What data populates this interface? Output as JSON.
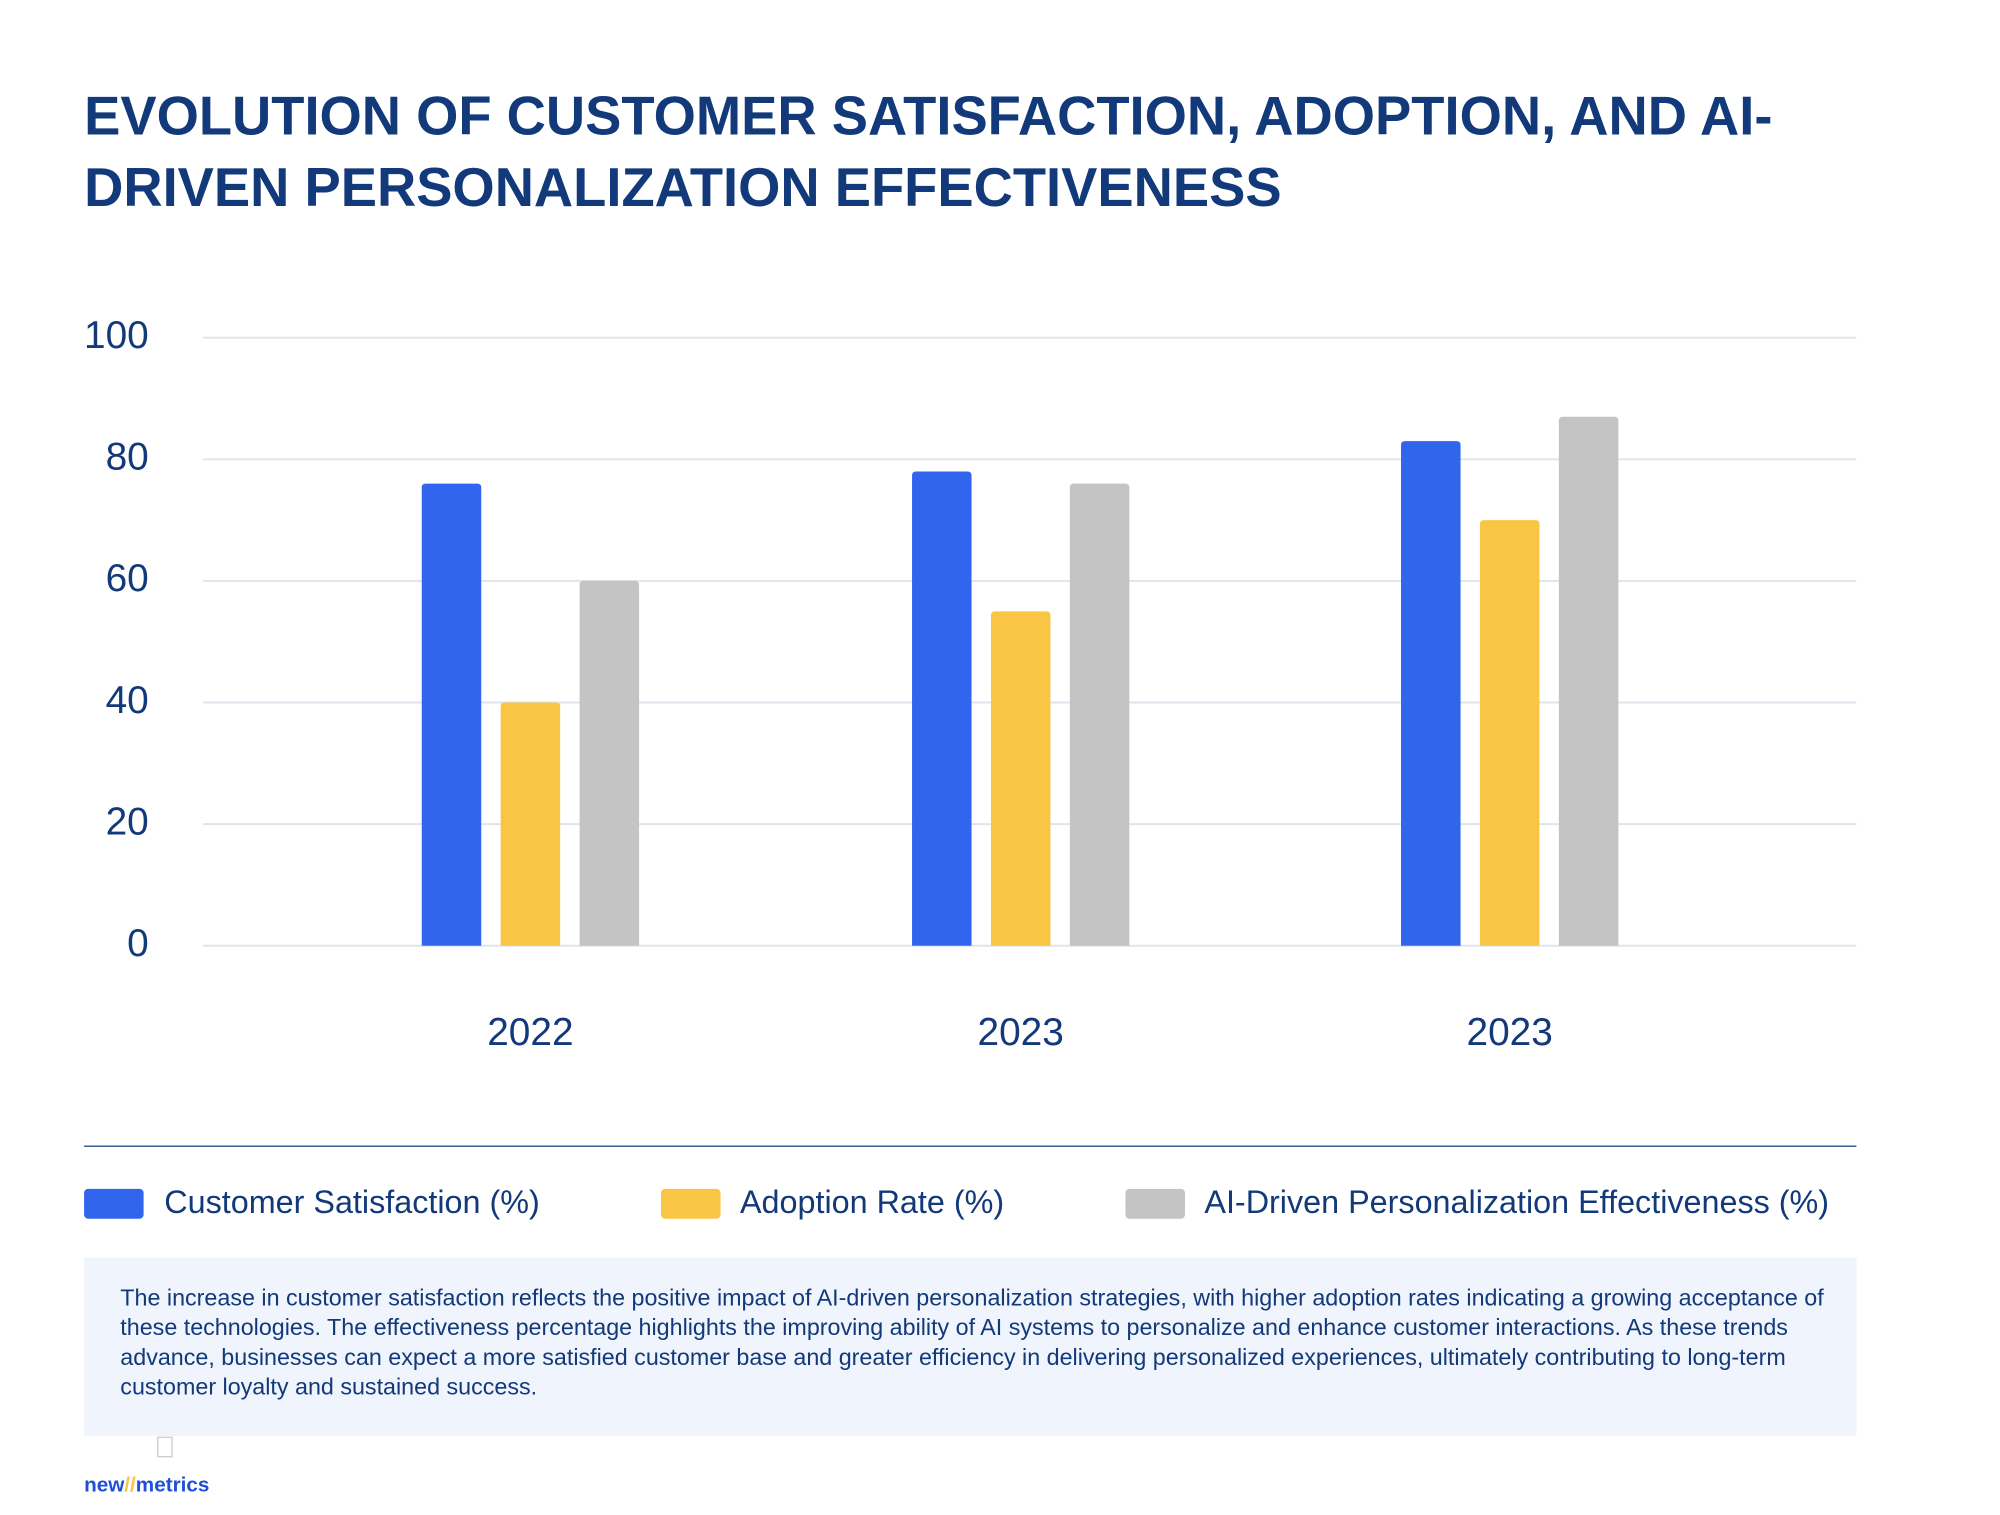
{
  "chart_data": {
    "type": "bar",
    "title": "EVOLUTION OF CUSTOMER SATISFACTION, ADOPTION, AND AI-DRIVEN PERSONALIZATION EFFECTIVENESS",
    "categories": [
      "2022",
      "2023",
      "2023"
    ],
    "series": [
      {
        "name": "Customer Satisfaction (%)",
        "color": "#3165ee",
        "values": [
          76,
          78,
          83
        ]
      },
      {
        "name": "Adoption Rate (%)",
        "color": "#f8c644",
        "values": [
          40,
          55,
          70
        ]
      },
      {
        "name": "AI-Driven Personalization Effectiveness (%)",
        "color": "#c4c4c4",
        "values": [
          60,
          76,
          87
        ]
      }
    ],
    "ylim": [
      0,
      100
    ],
    "yticks": [
      0,
      20,
      40,
      60,
      80,
      100
    ],
    "grid": true,
    "legend": "bottom",
    "note": "The increase in customer satisfaction reflects the positive impact of AI-driven personalization strategies, with higher adoption rates indicating a growing acceptance of these technologies. The effectiveness percentage highlights the improving ability of AI systems to personalize and enhance customer interactions. As these trends advance, businesses can expect a more satisfied customer base and greater efficiency in delivering personalized experiences, ultimately contributing to long-term customer loyalty and sustained success.",
    "brand": {
      "left": "new",
      "sep": "//",
      "right": "metrics"
    }
  }
}
